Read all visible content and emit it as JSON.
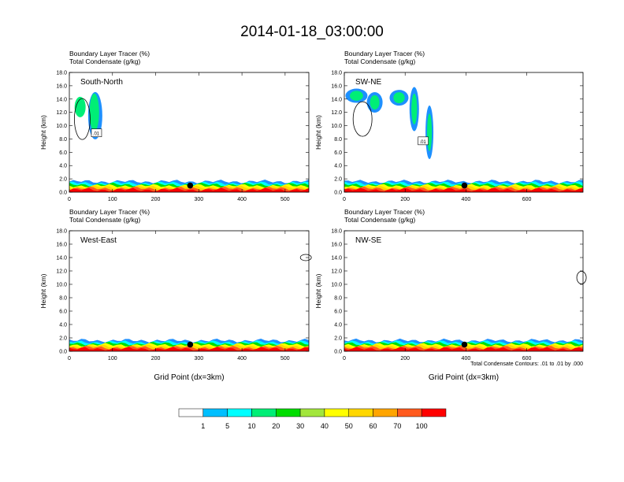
{
  "figure": {
    "title": "2014-01-18_03:00:00",
    "footnote": "Total Condensate Contours: .01 to .01 by .000",
    "colorbar_labels": [
      "1",
      "5",
      "10",
      "20",
      "30",
      "40",
      "50",
      "60",
      "70",
      "100"
    ],
    "colorbar_colors": [
      "#ffffff",
      "#1e90ff",
      "#00bfff",
      "#00ffff",
      "#00ee76",
      "#00dd00",
      "#a2e63c",
      "#ffff00",
      "#ffd700",
      "#ffa500",
      "#ff5a1e",
      "#ff0000"
    ]
  },
  "chart_data": [
    {
      "type": "heatmap",
      "panel": "South-North",
      "title_line1": "Boundary Layer Tracer   (%)",
      "title_line2": "Total Condensate   (g/kg)",
      "ylabel": "Height (km)",
      "xlabel": "",
      "xlim": [
        0,
        555
      ],
      "ylim": [
        0,
        18
      ],
      "xticks": [
        0,
        100,
        200,
        300,
        400,
        500
      ],
      "yticks": [
        "0.0",
        "2.0",
        "4.0",
        "6.0",
        "8.0",
        "10.0",
        "12.0",
        "14.0",
        "16.0",
        "18.0"
      ],
      "contour_label": ".01",
      "marker_x": 280
    },
    {
      "type": "heatmap",
      "panel": "SW-NE",
      "title_line1": "Boundary Layer Tracer   (%)",
      "title_line2": "Total Condensate   (g/kg)",
      "ylabel": "Height (km)",
      "xlabel": "",
      "xlim": [
        0,
        785
      ],
      "ylim": [
        0,
        18
      ],
      "xticks": [
        0,
        200,
        400,
        600
      ],
      "yticks": [
        "0.0",
        "2.0",
        "4.0",
        "6.0",
        "8.0",
        "10.0",
        "12.0",
        "14.0",
        "16.0",
        "18.0"
      ],
      "contour_label": ".01",
      "marker_x": 395
    },
    {
      "type": "heatmap",
      "panel": "West-East",
      "title_line1": "Boundary Layer Tracer   (%)",
      "title_line2": "Total Condensate   (g/kg)",
      "ylabel": "Height (km)",
      "xlabel": "Grid Point (dx=3km)",
      "xlim": [
        0,
        555
      ],
      "ylim": [
        0,
        18
      ],
      "xticks": [
        0,
        100,
        200,
        300,
        400,
        500
      ],
      "yticks": [
        "0.0",
        "2.0",
        "4.0",
        "6.0",
        "8.0",
        "10.0",
        "12.0",
        "14.0",
        "16.0",
        "18.0"
      ],
      "marker_x": 280
    },
    {
      "type": "heatmap",
      "panel": "NW-SE",
      "title_line1": "Boundary Layer Tracer   (%)",
      "title_line2": "Total Condensate   (g/kg)",
      "ylabel": "Height (km)",
      "xlabel": "Grid Point (dx=3km)",
      "xlim": [
        0,
        785
      ],
      "ylim": [
        0,
        18
      ],
      "xticks": [
        0,
        200,
        400,
        600
      ],
      "yticks": [
        "0.0",
        "2.0",
        "4.0",
        "6.0",
        "8.0",
        "10.0",
        "12.0",
        "14.0",
        "16.0",
        "18.0"
      ],
      "marker_x": 395
    }
  ]
}
